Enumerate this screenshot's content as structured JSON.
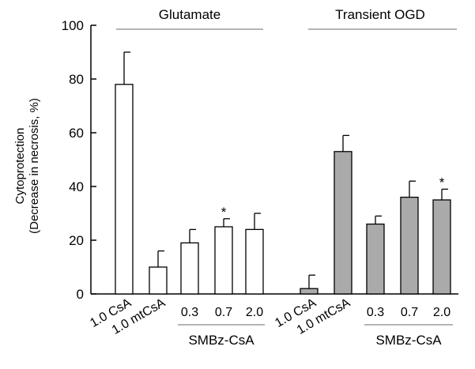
{
  "chart_data": {
    "type": "bar",
    "ylabel_line1": "Cytoprotection",
    "ylabel_line2": "(Decrease in necrosis, %)",
    "ylim": [
      0,
      100
    ],
    "yticks": [
      0,
      20,
      40,
      60,
      80,
      100
    ],
    "grid": false,
    "groups": [
      {
        "title": "Glutamate",
        "fill": "#ffffff",
        "bars": [
          {
            "label": "1.0 CsA",
            "value": 78,
            "error": 12,
            "star": ""
          },
          {
            "label": "1.0 mtCsA",
            "value": 10,
            "error": 6,
            "star": ""
          },
          {
            "label": "0.3",
            "value": 19,
            "error": 5,
            "star": ""
          },
          {
            "label": "0.7",
            "value": 25,
            "error": 3,
            "star": "*"
          },
          {
            "label": "2.0",
            "value": 24,
            "error": 6,
            "star": ""
          }
        ],
        "bracket_label": "SMBz-CsA"
      },
      {
        "title": "Transient OGD",
        "fill": "#aaaaaa",
        "bars": [
          {
            "label": "1.0 CsA",
            "value": 2,
            "error": 5,
            "star": ""
          },
          {
            "label": "1.0 mtCsA",
            "value": 53,
            "error": 6,
            "star": ""
          },
          {
            "label": "0.3",
            "value": 26,
            "error": 3,
            "star": ""
          },
          {
            "label": "0.7",
            "value": 36,
            "error": 6,
            "star": ""
          },
          {
            "label": "2.0",
            "value": 35,
            "error": 4,
            "star": "*"
          }
        ],
        "bracket_label": "SMBz-CsA"
      }
    ]
  }
}
